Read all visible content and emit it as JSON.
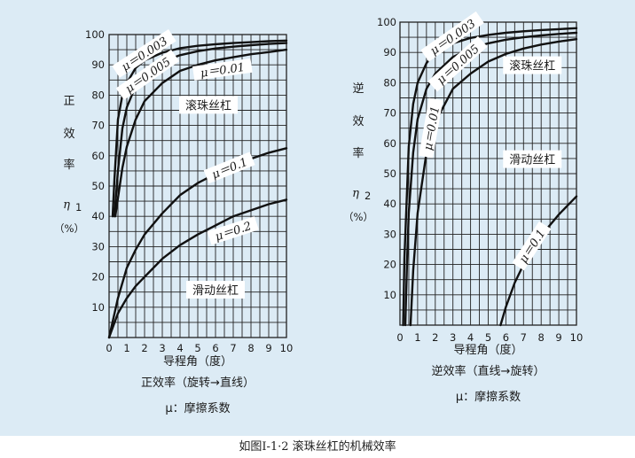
{
  "caption": "如图Ⅰ-1·2 滚珠丝杠的机械效率",
  "colors": {
    "panel": "#dcebf5",
    "grid": "#222222",
    "curve": "#111111"
  },
  "chart_data": [
    {
      "type": "line",
      "ylabel_chars": [
        "正",
        "效",
        "率"
      ],
      "ylabel_symbol": "η",
      "ylabel_sub": "1",
      "ylabel_unit": "（%）",
      "xlabel": "导程角（度）",
      "subtitle": "正效率（旋转→直线）",
      "note": "μ：摩擦系数",
      "xlim": [
        0,
        10
      ],
      "ylim": [
        0,
        100
      ],
      "x_ticks": [
        "0",
        "1",
        "2",
        "3",
        "4",
        "5",
        "6",
        "7",
        "8",
        "9",
        "10"
      ],
      "y_ticks": [
        "10",
        "20",
        "30",
        "40",
        "50",
        "60",
        "70",
        "80",
        "90",
        "100"
      ],
      "region_labels": [
        {
          "text": "滚珠丝杠",
          "x": 5.6,
          "y": 76.5
        },
        {
          "text": "滑动丝杠",
          "x": 6.0,
          "y": 15.5
        }
      ],
      "series": [
        {
          "name": "μ＝0.003",
          "x": [
            0.2,
            0.3,
            0.5,
            0.75,
            1,
            1.5,
            2,
            3,
            4,
            5,
            6,
            7,
            8,
            9,
            10
          ],
          "y": [
            40,
            52,
            72,
            80,
            84,
            89,
            91.5,
            94,
            95.5,
            96.3,
            96.8,
            97.2,
            97.5,
            97.8,
            98
          ]
        },
        {
          "name": "μ＝0.005",
          "x": [
            0.3,
            0.5,
            0.75,
            1,
            1.5,
            2,
            3,
            4,
            5,
            6,
            7,
            8,
            9,
            10
          ],
          "y": [
            40,
            55,
            69,
            76,
            83,
            87,
            91,
            93.2,
            94.5,
            95.4,
            96,
            96.5,
            96.9,
            97.2
          ]
        },
        {
          "name": "μ＝0.01",
          "x": [
            0.35,
            0.5,
            0.75,
            1,
            1.5,
            2,
            3,
            4,
            5,
            6,
            7,
            8,
            9,
            10
          ],
          "y": [
            40,
            46,
            56,
            63,
            72,
            78,
            84,
            88,
            90,
            91.5,
            92.5,
            93.5,
            94.2,
            95
          ]
        },
        {
          "name": "μ＝0.1",
          "x": [
            0,
            0.5,
            1,
            1.5,
            2,
            3,
            4,
            5,
            6,
            7,
            8,
            9,
            10
          ],
          "y": [
            0,
            13,
            23,
            29,
            34,
            41,
            47,
            51,
            54,
            57,
            59,
            61,
            62.5
          ]
        },
        {
          "name": "μ＝0.2",
          "x": [
            0,
            0.5,
            1,
            1.5,
            2,
            3,
            4,
            5,
            6,
            7,
            8,
            9,
            10
          ],
          "y": [
            0,
            8,
            13,
            17,
            20,
            26,
            30.5,
            34,
            37,
            40,
            42,
            44,
            45.5
          ]
        }
      ],
      "series_labels": [
        {
          "x": 2.0,
          "y": 93.5,
          "angle": -33
        },
        {
          "x": 2.2,
          "y": 86.5,
          "angle": -35
        },
        {
          "x": 6.4,
          "y": 88.2,
          "angle": -8
        },
        {
          "x": 6.8,
          "y": 55.8,
          "angle": -22
        },
        {
          "x": 7.0,
          "y": 35.0,
          "angle": -18
        }
      ]
    },
    {
      "type": "line",
      "ylabel_chars": [
        "逆",
        "效",
        "率"
      ],
      "ylabel_symbol": "η",
      "ylabel_sub": "2",
      "ylabel_unit": "（%）",
      "xlabel": "导程角（度）",
      "subtitle": "逆效率（直线→旋转）",
      "note": "μ：摩擦系数",
      "xlim": [
        0,
        10
      ],
      "ylim": [
        0,
        100
      ],
      "x_ticks": [
        "0",
        "1",
        "2",
        "3",
        "4",
        "5",
        "6",
        "7",
        "8",
        "9",
        "10"
      ],
      "y_ticks": [
        "10",
        "20",
        "30",
        "40",
        "50",
        "60",
        "70",
        "80",
        "90",
        "100"
      ],
      "region_labels": [
        {
          "text": "滚珠丝杠",
          "x": 7.5,
          "y": 85.5
        },
        {
          "text": "滑动丝杠",
          "x": 7.5,
          "y": 54.5
        }
      ],
      "series": [
        {
          "name": "μ＝0.003",
          "x": [
            0.18,
            0.25,
            0.5,
            0.75,
            1,
            1.5,
            2,
            3,
            4,
            5,
            6,
            7,
            8,
            9,
            10
          ],
          "y": [
            0,
            22,
            59,
            73,
            80,
            86.5,
            90,
            93,
            94.8,
            95.8,
            96.5,
            97,
            97.4,
            97.7,
            98
          ]
        },
        {
          "name": "μ＝0.005",
          "x": [
            0.3,
            0.4,
            0.5,
            0.75,
            1,
            1.5,
            2,
            3,
            4,
            5,
            6,
            7,
            8,
            9,
            10
          ],
          "y": [
            0,
            21,
            37,
            57,
            68,
            78,
            83,
            88.5,
            91.3,
            93,
            94.2,
            95,
            95.6,
            96.1,
            96.5
          ]
        },
        {
          "name": "μ＝0.01",
          "x": [
            0.6,
            0.75,
            1,
            1.5,
            2,
            3,
            4,
            5,
            6,
            7,
            8,
            9,
            10
          ],
          "y": [
            0,
            18,
            37,
            57,
            67,
            78,
            83,
            87,
            89.5,
            91.3,
            92.6,
            93.6,
            94.4
          ]
        },
        {
          "name": "μ＝0.1",
          "x": [
            5.7,
            6,
            6.5,
            7,
            7.5,
            8,
            8.5,
            9,
            9.5,
            10
          ],
          "y": [
            0,
            6,
            14,
            20,
            25,
            29.5,
            33,
            36.5,
            39.5,
            42.5
          ]
        }
      ],
      "series_labels": [
        {
          "x": 3.0,
          "y": 95.0,
          "angle": -35
        },
        {
          "x": 3.3,
          "y": 86.0,
          "angle": -42
        },
        {
          "x": 1.8,
          "y": 65.0,
          "angle": -80
        },
        {
          "x": 7.5,
          "y": 26.0,
          "angle": -57
        }
      ]
    }
  ]
}
